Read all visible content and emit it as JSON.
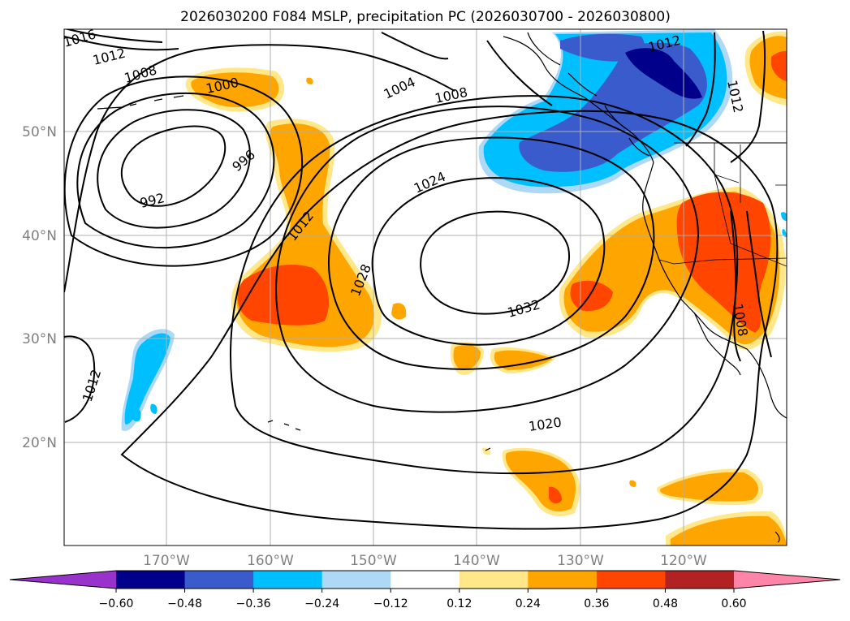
{
  "title": "2026030200 F084 MSLP, precipitation PC (2026030700 - 2026030800)",
  "lat_labels": [
    "50°N",
    "40°N",
    "30°N",
    "20°N"
  ],
  "lon_labels": [
    "170°W",
    "160°W",
    "150°W",
    "140°W",
    "130°W",
    "120°W"
  ],
  "colorbar": {
    "ticks": [
      "−0.60",
      "−0.48",
      "−0.36",
      "−0.24",
      "−0.12",
      "0.12",
      "0.24",
      "0.36",
      "0.48",
      "0.60"
    ],
    "colors": [
      "#9932cc",
      "#00008b",
      "#3a5bcc",
      "#00bfff",
      "#add8f6",
      "#ffffff",
      "#ffe78a",
      "#ffa500",
      "#ff4500",
      "#b22222",
      "#ff85a8"
    ]
  },
  "contour_labels": [
    "1016",
    "1012",
    "1008",
    "1000",
    "992",
    "996",
    "1004",
    "1008",
    "1024",
    "1012",
    "1028",
    "1032",
    "1020",
    "1012",
    "1012",
    "1012",
    "1008"
  ],
  "colors": {
    "contour": "#000000",
    "land_outline": "#000000",
    "grid": "#b0b0b0"
  }
}
